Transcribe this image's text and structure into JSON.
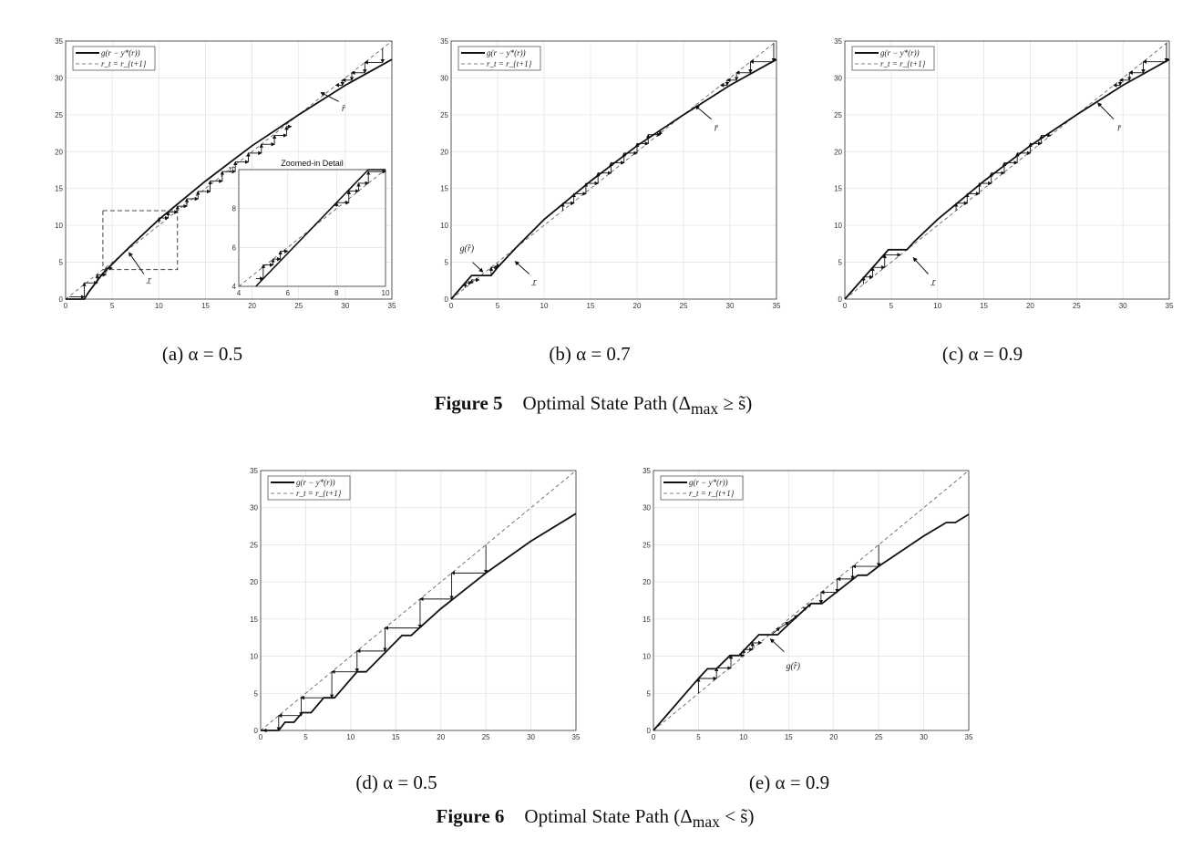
{
  "figures": [
    {
      "label": "Figure 5",
      "title_pre": "Optimal State Path (Δ",
      "sub": "max",
      "title_post": " ≥ s̃)"
    },
    {
      "label": "Figure 6",
      "title_pre": "Optimal State Path (Δ",
      "sub": "max",
      "title_post": " < s̃)"
    }
  ],
  "legend": {
    "solid": "g(r − y*(r))",
    "dashed": "r_t = r_{t+1}"
  },
  "chart_data": [
    {
      "id": "a",
      "type": "line",
      "caption": "(a) α = 0.5",
      "xlim": [
        0,
        35
      ],
      "ylim": [
        0,
        35
      ],
      "xticks": [
        0,
        5,
        10,
        15,
        20,
        25,
        30,
        35
      ],
      "yticks": [
        0,
        5,
        10,
        15,
        20,
        25,
        30,
        35
      ],
      "grid": true,
      "legend_position": "top-left",
      "curve": [
        [
          0,
          0
        ],
        [
          2,
          0
        ],
        [
          2.5,
          1
        ],
        [
          4,
          3.5
        ],
        [
          6.8,
          7
        ],
        [
          10,
          10.8
        ],
        [
          15,
          16
        ],
        [
          20,
          20.8
        ],
        [
          25,
          25
        ],
        [
          30,
          29
        ],
        [
          35,
          32.5
        ]
      ],
      "cobweb": [
        [
          [
            34,
            34
          ],
          [
            34,
            32.1
          ],
          [
            32.1,
            32.1
          ],
          [
            32.1,
            30.7
          ],
          [
            30.7,
            30.7
          ],
          [
            30.7,
            29.7
          ],
          [
            29.7,
            29.7
          ],
          [
            29.7,
            29
          ],
          [
            29,
            29
          ]
        ],
        [
          [
            0.4,
            0.3
          ],
          [
            2,
            0.3
          ],
          [
            2,
            2.2
          ],
          [
            3.4,
            2.2
          ],
          [
            3.4,
            3.3
          ],
          [
            4.3,
            3.3
          ],
          [
            4.3,
            4.2
          ],
          [
            5,
            4.2
          ]
        ],
        [
          [
            10,
            10.3
          ],
          [
            10,
            11
          ],
          [
            11,
            11
          ],
          [
            11,
            11.8
          ],
          [
            12,
            11.8
          ],
          [
            12,
            12.6
          ],
          [
            13,
            12.6
          ],
          [
            13,
            13.6
          ],
          [
            14.2,
            13.6
          ],
          [
            14.2,
            14.6
          ],
          [
            15.5,
            14.6
          ],
          [
            15.5,
            16
          ],
          [
            16.8,
            16
          ],
          [
            16.8,
            17.3
          ],
          [
            18.2,
            17.3
          ],
          [
            18.2,
            18.6
          ],
          [
            19.6,
            18.6
          ],
          [
            19.6,
            19.8
          ],
          [
            21,
            19.8
          ],
          [
            21,
            21
          ],
          [
            22.4,
            21
          ],
          [
            22.4,
            22.2
          ],
          [
            23.7,
            22.2
          ],
          [
            23.7,
            23.4
          ],
          [
            24.2,
            23.4
          ]
        ]
      ],
      "annotations": [
        {
          "label": "r̄",
          "x": 29.8,
          "y": 25.5,
          "from": [
            29.3,
            26.8
          ],
          "to": [
            27.4,
            28
          ]
        },
        {
          "label": "r̲",
          "x": 9,
          "y": 2.2,
          "from": [
            8.4,
            3.4
          ],
          "to": [
            6.8,
            6.3
          ]
        }
      ],
      "highlight_box": [
        4,
        4,
        12,
        12
      ],
      "inset": {
        "title": "Zoomed-in Detail",
        "xlim": [
          4,
          10
        ],
        "ylim": [
          4,
          10
        ],
        "xticks": [
          4,
          6,
          8,
          10
        ],
        "yticks": [
          4,
          6,
          8,
          10
        ],
        "curve": [
          [
            4.7,
            4
          ],
          [
            9.3,
            10
          ],
          [
            10,
            10
          ]
        ],
        "cobweb": [
          [
            [
              4.7,
              4.4
            ],
            [
              5,
              4.4
            ],
            [
              5,
              5.1
            ],
            [
              5.4,
              5.1
            ],
            [
              5.4,
              5.4
            ],
            [
              5.7,
              5.4
            ],
            [
              5.7,
              5.8
            ],
            [
              6,
              5.8
            ]
          ],
          [
            [
              8,
              8.1
            ],
            [
              8,
              8.3
            ],
            [
              8.5,
              8.3
            ],
            [
              8.5,
              8.9
            ],
            [
              8.9,
              8.9
            ],
            [
              8.9,
              9.3
            ],
            [
              9.3,
              9.3
            ],
            [
              9.3,
              9.9
            ],
            [
              10,
              9.9
            ]
          ]
        ]
      }
    },
    {
      "id": "b",
      "type": "line",
      "caption": "(b) α = 0.7",
      "xlim": [
        0,
        35
      ],
      "ylim": [
        0,
        35
      ],
      "xticks": [
        0,
        5,
        10,
        15,
        20,
        25,
        30,
        35
      ],
      "yticks": [
        0,
        5,
        10,
        15,
        20,
        25,
        30,
        35
      ],
      "grid": true,
      "legend_position": "top-left",
      "curve": [
        [
          0,
          0
        ],
        [
          2.2,
          3.2
        ],
        [
          4.3,
          3.2
        ],
        [
          5,
          4.3
        ],
        [
          7,
          7
        ],
        [
          10,
          10.8
        ],
        [
          15,
          16
        ],
        [
          20,
          20.8
        ],
        [
          25,
          25
        ],
        [
          30,
          29
        ],
        [
          35,
          32.5
        ]
      ],
      "cobweb": [
        [
          [
            34.7,
            34.7
          ],
          [
            34.7,
            32.2
          ],
          [
            32.2,
            32.2
          ],
          [
            32.2,
            30.7
          ],
          [
            30.7,
            30.7
          ],
          [
            30.7,
            29.7
          ],
          [
            29.7,
            29.7
          ],
          [
            29.7,
            29
          ],
          [
            29,
            29
          ]
        ],
        [
          [
            1.5,
            1.5
          ],
          [
            1.5,
            2.2
          ],
          [
            2.2,
            2.2
          ],
          [
            2.2,
            2.6
          ],
          [
            3,
            2.6
          ]
        ],
        [
          [
            4.3,
            3.3
          ],
          [
            4.3,
            4.3
          ],
          [
            5,
            4.3
          ],
          [
            5,
            4.8
          ]
        ],
        [
          [
            12,
            12
          ],
          [
            12,
            13
          ],
          [
            13.2,
            13
          ],
          [
            13.2,
            14.3
          ],
          [
            14.5,
            14.3
          ],
          [
            14.5,
            15.7
          ],
          [
            15.8,
            15.7
          ],
          [
            15.8,
            17.1
          ],
          [
            17.2,
            17.1
          ],
          [
            17.2,
            18.5
          ],
          [
            18.6,
            18.5
          ],
          [
            18.6,
            19.8
          ],
          [
            20,
            19.8
          ],
          [
            20,
            21.1
          ],
          [
            21.2,
            21.1
          ],
          [
            21.2,
            22.3
          ],
          [
            22.5,
            22.3
          ],
          [
            22.5,
            22.8
          ]
        ]
      ],
      "annotations": [
        {
          "label": "r̄",
          "x": 28.5,
          "y": 22.8,
          "from": [
            28,
            24.4
          ],
          "to": [
            26.3,
            26.2
          ]
        },
        {
          "label": "r̲",
          "x": 9,
          "y": 2,
          "from": [
            8.4,
            3.4
          ],
          "to": [
            6.9,
            5.1
          ]
        },
        {
          "label": "g(r̂)",
          "x": 1.7,
          "y": 6.5,
          "from": [
            2.3,
            5
          ],
          "to": [
            3.4,
            3.7
          ]
        }
      ]
    },
    {
      "id": "c",
      "type": "line",
      "caption": "(c) α = 0.9",
      "xlim": [
        0,
        35
      ],
      "ylim": [
        0,
        35
      ],
      "xticks": [
        0,
        5,
        10,
        15,
        20,
        25,
        30,
        35
      ],
      "yticks": [
        0,
        5,
        10,
        15,
        20,
        25,
        30,
        35
      ],
      "grid": true,
      "legend_position": "top-left",
      "curve": [
        [
          0,
          0
        ],
        [
          4.7,
          6.7
        ],
        [
          6.7,
          6.7
        ],
        [
          7.5,
          7.8
        ],
        [
          10,
          10.8
        ],
        [
          15,
          16
        ],
        [
          20,
          20.8
        ],
        [
          25,
          25
        ],
        [
          30,
          29
        ],
        [
          35,
          32.5
        ]
      ],
      "cobweb": [
        [
          [
            34.7,
            34.7
          ],
          [
            34.7,
            32.2
          ],
          [
            32.2,
            32.2
          ],
          [
            32.2,
            30.7
          ],
          [
            30.7,
            30.7
          ],
          [
            30.7,
            29.7
          ],
          [
            29.7,
            29.7
          ],
          [
            29.7,
            29
          ],
          [
            29,
            29
          ]
        ],
        [
          [
            2,
            2
          ],
          [
            2,
            3
          ],
          [
            3,
            3
          ],
          [
            3,
            4.3
          ],
          [
            4.3,
            4.3
          ],
          [
            4.3,
            6
          ],
          [
            6,
            6
          ]
        ],
        [
          [
            12,
            12
          ],
          [
            12,
            13
          ],
          [
            13.2,
            13
          ],
          [
            13.2,
            14.3
          ],
          [
            14.5,
            14.3
          ],
          [
            14.5,
            15.7
          ],
          [
            15.8,
            15.7
          ],
          [
            15.8,
            17.1
          ],
          [
            17.2,
            17.1
          ],
          [
            17.2,
            18.5
          ],
          [
            18.6,
            18.5
          ],
          [
            18.6,
            19.8
          ],
          [
            20,
            19.8
          ],
          [
            20,
            21.1
          ],
          [
            21.2,
            21.1
          ],
          [
            21.2,
            22.2
          ],
          [
            22.2,
            22.2
          ]
        ]
      ],
      "annotations": [
        {
          "label": "r̄",
          "x": 29.6,
          "y": 22.8,
          "from": [
            29,
            24.4
          ],
          "to": [
            27.3,
            26.6
          ]
        },
        {
          "label": "r̲",
          "x": 9.6,
          "y": 2,
          "from": [
            9,
            3.4
          ],
          "to": [
            7.4,
            5.6
          ]
        }
      ]
    },
    {
      "id": "d",
      "type": "line",
      "caption": "(d) α = 0.5",
      "xlim": [
        0,
        35
      ],
      "ylim": [
        0,
        35
      ],
      "xticks": [
        0,
        5,
        10,
        15,
        20,
        25,
        30,
        35
      ],
      "yticks": [
        0,
        5,
        10,
        15,
        20,
        25,
        30,
        35
      ],
      "grid": true,
      "legend_position": "top-left",
      "curve": [
        [
          0,
          0
        ],
        [
          2,
          0
        ],
        [
          2.7,
          1.1
        ],
        [
          3.7,
          1.1
        ],
        [
          4.6,
          2.4
        ],
        [
          5.6,
          2.4
        ],
        [
          7,
          4.4
        ],
        [
          8.2,
          4.4
        ],
        [
          10.7,
          7.9
        ],
        [
          11.7,
          7.9
        ],
        [
          15.7,
          12.8
        ],
        [
          16.7,
          12.8
        ],
        [
          20,
          16.4
        ],
        [
          25,
          21.2
        ],
        [
          30,
          25.5
        ],
        [
          35,
          29.2
        ]
      ],
      "cobweb": [
        [
          [
            25,
            25
          ],
          [
            25,
            21.2
          ],
          [
            21.2,
            21.2
          ],
          [
            21.2,
            17.7
          ],
          [
            17.7,
            17.7
          ],
          [
            17.7,
            13.8
          ],
          [
            13.8,
            13.8
          ],
          [
            13.8,
            10.7
          ],
          [
            10.7,
            10.7
          ],
          [
            10.7,
            7.9
          ],
          [
            7.9,
            7.9
          ],
          [
            7.9,
            4.4
          ],
          [
            4.5,
            4.4
          ],
          [
            4.5,
            2
          ],
          [
            2,
            2
          ],
          [
            2,
            0
          ],
          [
            0.3,
            0
          ]
        ]
      ],
      "annotations": []
    },
    {
      "id": "e",
      "type": "line",
      "caption": "(e) α = 0.9",
      "xlim": [
        0,
        35
      ],
      "ylim": [
        0,
        35
      ],
      "xticks": [
        0,
        5,
        10,
        15,
        20,
        25,
        30,
        35
      ],
      "yticks": [
        0,
        5,
        10,
        15,
        20,
        25,
        30,
        35
      ],
      "grid": true,
      "legend_position": "top-left",
      "curve": [
        [
          0,
          0
        ],
        [
          5,
          7
        ],
        [
          6,
          8.3
        ],
        [
          7,
          8.3
        ],
        [
          8.5,
          10.1
        ],
        [
          9.5,
          10.1
        ],
        [
          11.7,
          12.9
        ],
        [
          13.8,
          12.9
        ],
        [
          15,
          14.3
        ],
        [
          17.5,
          17.1
        ],
        [
          18.7,
          17.1
        ],
        [
          22.7,
          20.9
        ],
        [
          23.7,
          20.9
        ],
        [
          25,
          22.1
        ],
        [
          30,
          26.2
        ],
        [
          32.5,
          28
        ],
        [
          33.5,
          28
        ],
        [
          35,
          29.1
        ]
      ],
      "cobweb": [
        [
          [
            5,
            5
          ],
          [
            5,
            7
          ],
          [
            7,
            7
          ],
          [
            7,
            8.4
          ],
          [
            8.6,
            8.4
          ],
          [
            8.6,
            10.1
          ],
          [
            10,
            10.1
          ],
          [
            10,
            10.9
          ],
          [
            11,
            10.9
          ],
          [
            11,
            11.8
          ],
          [
            12,
            11.8
          ]
        ],
        [
          [
            13.2,
            13
          ],
          [
            14,
            13.8
          ],
          [
            15,
            14.6
          ],
          [
            16,
            15.5
          ],
          [
            17,
            16.6
          ],
          [
            17.5,
            17
          ]
        ],
        [
          [
            25,
            25
          ],
          [
            25,
            22.1
          ],
          [
            22.1,
            22.1
          ],
          [
            22.1,
            20.4
          ],
          [
            20.4,
            20.4
          ],
          [
            20.4,
            18.6
          ],
          [
            18.6,
            18.6
          ],
          [
            18.6,
            17.1
          ]
        ]
      ],
      "annotations": [
        {
          "label": "g(r̂)",
          "x": 15.5,
          "y": 8.3,
          "from": [
            14.5,
            10.6
          ],
          "to": [
            13,
            12.3
          ]
        }
      ]
    }
  ]
}
